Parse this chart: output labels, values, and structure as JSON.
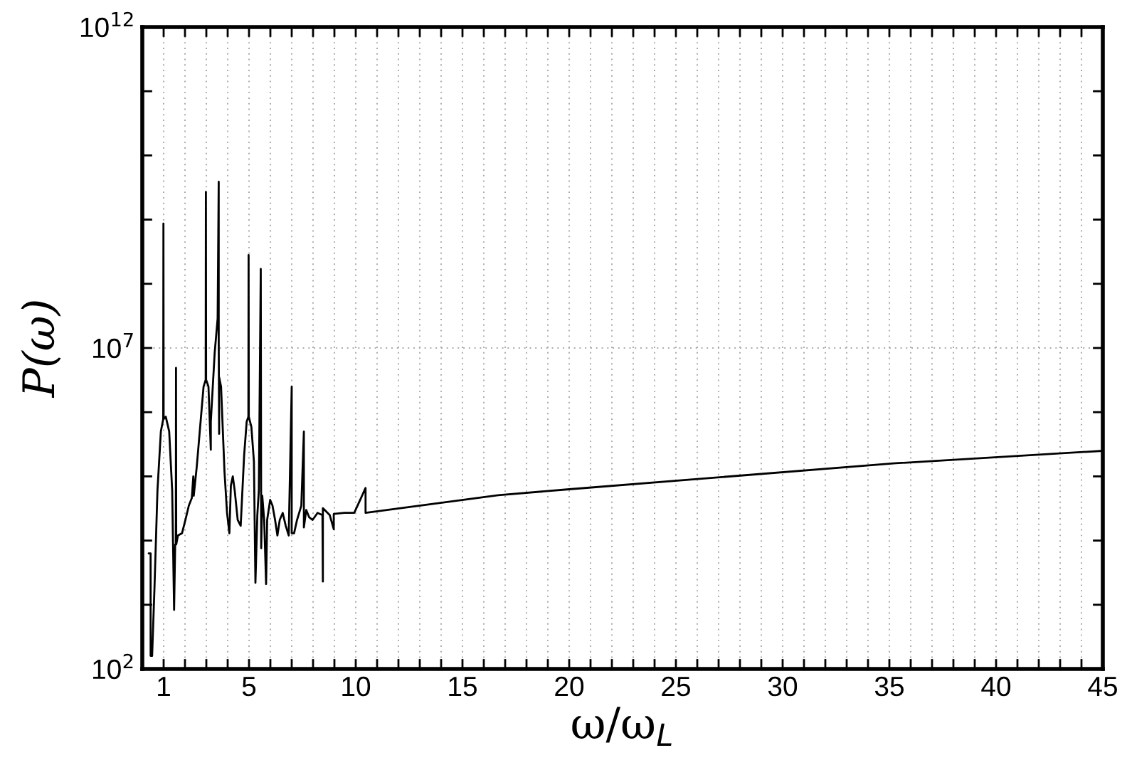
{
  "chart_data": {
    "type": "line",
    "xlabel": "ω/ω$_{L}$",
    "ylabel": "P(ω)",
    "log": "y",
    "grid": true,
    "line_style": "solid",
    "marker": "none",
    "xlim": [
      0,
      45
    ],
    "ylim": [
      100,
      1000000000000
    ],
    "xticks": [
      {
        "value": 0,
        "label": null
      },
      1,
      {
        "value": 2,
        "label": null
      },
      {
        "value": 3,
        "label": null
      },
      {
        "value": 4,
        "label": null
      },
      5,
      {
        "value": 6,
        "label": null
      },
      {
        "value": 7,
        "label": null
      },
      {
        "value": 8,
        "label": null
      },
      {
        "value": 9,
        "label": null
      },
      10,
      {
        "value": 11,
        "label": null
      },
      {
        "value": 12,
        "label": null
      },
      {
        "value": 13,
        "label": null
      },
      {
        "value": 14,
        "label": null
      },
      15,
      {
        "value": 16,
        "label": null
      },
      {
        "value": 17,
        "label": null
      },
      {
        "value": 18,
        "label": null
      },
      {
        "value": 19,
        "label": null
      },
      20,
      {
        "value": 21,
        "label": null
      },
      {
        "value": 22,
        "label": null
      },
      {
        "value": 23,
        "label": null
      },
      {
        "value": 24,
        "label": null
      },
      25,
      {
        "value": 26,
        "label": null
      },
      {
        "value": 27,
        "label": null
      },
      {
        "value": 28,
        "label": null
      },
      {
        "value": 29,
        "label": null
      },
      30,
      {
        "value": 31,
        "label": null
      },
      {
        "value": 32,
        "label": null
      },
      {
        "value": 33,
        "label": null
      },
      {
        "value": 34,
        "label": null
      },
      35,
      {
        "value": 36,
        "label": null
      },
      {
        "value": 37,
        "label": null
      },
      {
        "value": 38,
        "label": null
      },
      {
        "value": 39,
        "label": null
      },
      40,
      {
        "value": 41,
        "label": null
      },
      {
        "value": 42,
        "label": null
      },
      {
        "value": 43,
        "label": null
      },
      {
        "value": 44,
        "label": null
      },
      45
    ],
    "yticks": [
      {
        "value": 100,
        "label": "10$^{2}$"
      },
      {
        "value": 1000,
        "label": null
      },
      {
        "value": 10000,
        "label": null
      },
      {
        "value": 100000,
        "label": null
      },
      {
        "value": 1000000,
        "label": null
      },
      {
        "value": 10000000,
        "label": "10$^{7}$"
      },
      {
        "value": 100000000,
        "label": null
      },
      {
        "value": 1000000000,
        "label": null
      },
      {
        "value": 10000000000,
        "label": null
      },
      {
        "value": 100000000000,
        "label": null
      },
      {
        "value": 1000000000000,
        "label": "10$^{12}$"
      }
    ],
    "series": [
      {
        "color": "#000000",
        "x": [
          0.3,
          0.39,
          0.39,
          0.46,
          0.57,
          0.71,
          0.87,
          0.98,
          0.99,
          1.0,
          1.1,
          1.26,
          1.4,
          1.49,
          1.54,
          1.57,
          1.58,
          1.59,
          1.67,
          1.86,
          2.02,
          2.18,
          2.32,
          2.39,
          2.41,
          2.55,
          2.71,
          2.87,
          2.97,
          2.98,
          2.99,
          3.1,
          3.21,
          3.21,
          3.39,
          3.53,
          3.58,
          3.58,
          3.6,
          3.6,
          3.69,
          3.85,
          3.97,
          4.08,
          4.15,
          4.24,
          4.33,
          4.47,
          4.61,
          4.77,
          4.89,
          4.97,
          4.98,
          4.99,
          5.11,
          5.23,
          5.3,
          5.39,
          5.46,
          5.55,
          5.57,
          5.62,
          5.71,
          5.8,
          5.85,
          5.99,
          6.1,
          6.22,
          6.33,
          6.44,
          6.58,
          6.72,
          6.86,
          7.0,
          7.0,
          7.11,
          7.25,
          7.45,
          7.57,
          7.57,
          7.68,
          7.82,
          7.98,
          8.21,
          8.44,
          8.46,
          8.46,
          8.78,
          8.97,
          8.97,
          9.47,
          9.93,
          10.46,
          10.46,
          16.67,
          20,
          26,
          35.3,
          45
        ],
        "values": [
          6300.0,
          6300.0,
          160.0,
          160.0,
          1800.0,
          60000.0,
          500000.0,
          780000.0,
          870000000.0,
          780000.0,
          850000.0,
          500000.0,
          60000.0,
          830.0,
          8700.0,
          8700.0,
          4900000.0,
          8700.0,
          12000.0,
          13000.0,
          21000.0,
          35000.0,
          46000.0,
          100000.0,
          50000.0,
          140000.0,
          590000.0,
          2500000.0,
          3200000.0,
          2700000000.0,
          3200000.0,
          2500000.0,
          260000.0,
          710000.0,
          8300000.0,
          29000000.0,
          3900000000.0,
          14000000.0,
          460000.0,
          3500000.0,
          2500000.0,
          120000.0,
          27000.0,
          13000.0,
          72000.0,
          100000.0,
          60000.0,
          21000.0,
          17000.0,
          210000.0,
          710000.0,
          850000.0,
          280000000.0,
          850000.0,
          590000.0,
          170000.0,
          2200.0,
          25000.0,
          60000.0,
          170000000.0,
          7600.0,
          50000.0,
          21000.0,
          2100.0,
          21000.0,
          43000.0,
          35000.0,
          21000.0,
          12000.0,
          21000.0,
          27000.0,
          17000.0,
          12000.0,
          2500000.0,
          13000.0,
          13000.0,
          21000.0,
          35000.0,
          500000.0,
          16000.0,
          30000.0,
          23000.0,
          21000.0,
          27000.0,
          25000.0,
          2300.0,
          32000.0,
          25000.0,
          15000.0,
          26000.0,
          27000.0,
          27000.0,
          66000.0,
          27000.0,
          51000.0,
          63000.0,
          91000.0,
          160000.0,
          250000.0
        ]
      }
    ]
  }
}
